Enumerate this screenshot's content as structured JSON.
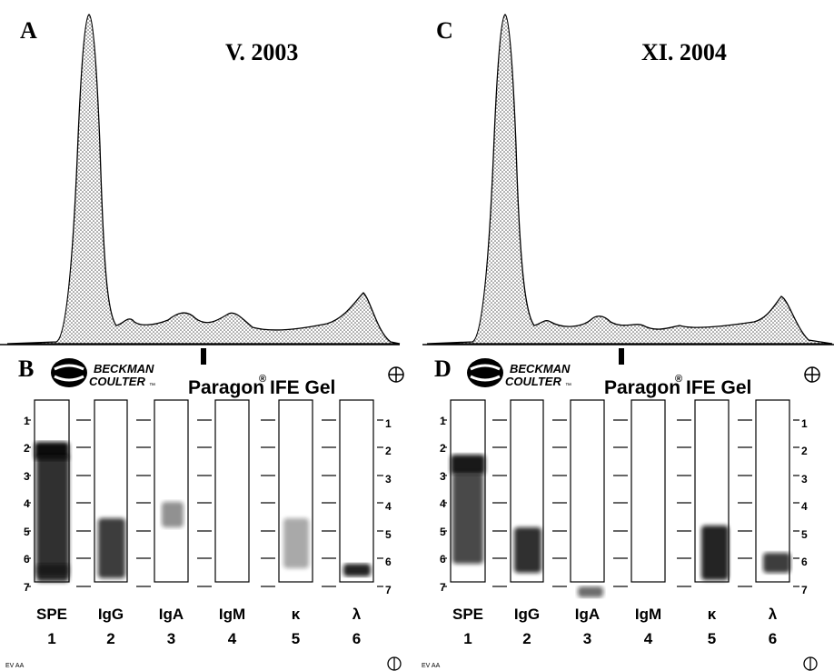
{
  "panels": [
    {
      "label": "A",
      "date": "V. 2003"
    },
    {
      "label": "C",
      "date": "XI. 2004"
    }
  ],
  "gels": [
    {
      "label": "B",
      "brand": "BECKMAN",
      "brand2": "COULTER",
      "trademark": "™",
      "product": "Paragon",
      "registered": "®",
      "product_suffix": "IFE Gel",
      "scale": [
        "1",
        "2",
        "3",
        "4",
        "5",
        "6",
        "7"
      ],
      "lanes": [
        {
          "name": "SPE",
          "number": "1"
        },
        {
          "name": "IgG",
          "number": "2"
        },
        {
          "name": "IgA",
          "number": "3"
        },
        {
          "name": "IgM",
          "number": "4"
        },
        {
          "name": "κ",
          "number": "5"
        },
        {
          "name": "λ",
          "number": "6"
        }
      ],
      "footer": "EV AA"
    },
    {
      "label": "D",
      "brand": "BECKMAN",
      "brand2": "COULTER",
      "trademark": "™",
      "product": "Paragon",
      "registered": "®",
      "product_suffix": "IFE Gel",
      "scale": [
        "1",
        "2",
        "3",
        "4",
        "5",
        "6",
        "7"
      ],
      "lanes": [
        {
          "name": "SPE",
          "number": "1"
        },
        {
          "name": "IgG",
          "number": "2"
        },
        {
          "name": "IgA",
          "number": "3"
        },
        {
          "name": "IgM",
          "number": "4"
        },
        {
          "name": "κ",
          "number": "5"
        },
        {
          "name": "λ",
          "number": "6"
        }
      ],
      "footer": "EV AA"
    }
  ]
}
